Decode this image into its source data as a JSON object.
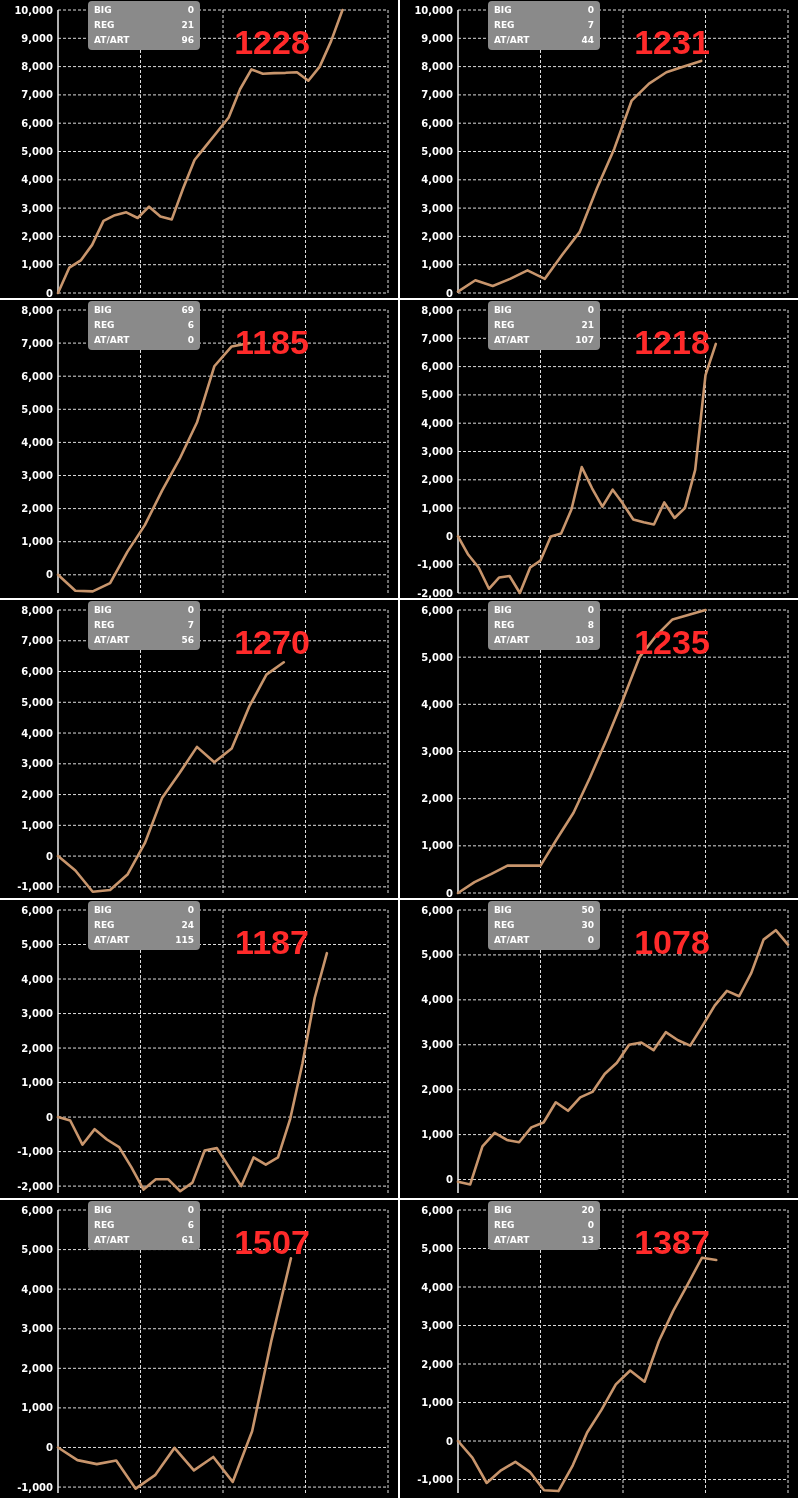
{
  "chart_data": [
    {
      "type": "line",
      "title": "1228",
      "annotations": [
        "BIG",
        "0",
        "REG",
        "21",
        "AT/ART",
        "96"
      ],
      "grid": true,
      "categories": [
        null,
        null,
        null,
        null,
        null,
        null,
        null,
        null,
        null,
        null,
        null,
        null,
        null,
        null,
        null,
        null,
        null,
        null,
        null,
        null,
        null,
        null,
        null,
        null,
        null,
        null,
        null,
        null,
        null,
        null
      ],
      "color": "#c8956c",
      "values": [
        0,
        900,
        1150,
        1700,
        2550,
        2750,
        2850,
        2650,
        3050,
        2700,
        2600,
        3700,
        4700,
        5200,
        5700,
        6200,
        7200,
        7900,
        7750,
        7770,
        7780,
        7800,
        7500,
        8000,
        8900,
        10000,
        null,
        null,
        null,
        null
      ],
      "ylim": [
        0,
        10000
      ],
      "yticks": [
        {
          "value": 0,
          "label": "0"
        },
        {
          "value": 1000,
          "label": "1,000"
        },
        {
          "value": 2000,
          "label": "2,000"
        },
        {
          "value": 3000,
          "label": "3,000"
        },
        {
          "value": 4000,
          "label": "4,000"
        },
        {
          "value": 5000,
          "label": "5,000"
        },
        {
          "value": 6000,
          "label": "6,000"
        },
        {
          "value": 7000,
          "label": "7,000"
        },
        {
          "value": 8000,
          "label": "8,000"
        },
        {
          "value": 9000,
          "label": "9,000"
        },
        {
          "value": 10000,
          "label": "10,000"
        }
      ]
    },
    {
      "type": "line",
      "title": "1231",
      "annotations": [
        "BIG",
        "0",
        "REG",
        "7",
        "AT/ART",
        "44"
      ],
      "grid": true,
      "categories": [
        null,
        null,
        null,
        null,
        null,
        null,
        null,
        null,
        null,
        null,
        null,
        null,
        null,
        null,
        null,
        null,
        null,
        null,
        null,
        null
      ],
      "color": "#c8956c",
      "values": [
        50,
        450,
        250,
        500,
        800,
        500,
        1350,
        2150,
        3700,
        5100,
        6800,
        7400,
        7800,
        8000,
        8200,
        null,
        null,
        null,
        null,
        null
      ],
      "ylim": [
        0,
        10000
      ],
      "yticks": [
        {
          "value": 0,
          "label": "0"
        },
        {
          "value": 1000,
          "label": "1,000"
        },
        {
          "value": 2000,
          "label": "2,000"
        },
        {
          "value": 3000,
          "label": "3,000"
        },
        {
          "value": 4000,
          "label": "4,000"
        },
        {
          "value": 5000,
          "label": "5,000"
        },
        {
          "value": 6000,
          "label": "6,000"
        },
        {
          "value": 7000,
          "label": "7,000"
        },
        {
          "value": 8000,
          "label": "8,000"
        },
        {
          "value": 9000,
          "label": "9,000"
        },
        {
          "value": 10000,
          "label": "10,000"
        }
      ]
    },
    {
      "type": "line",
      "title": "1185",
      "annotations": [
        "BIG",
        "69",
        "REG",
        "6",
        "AT/ART",
        "0"
      ],
      "grid": true,
      "categories": [
        null,
        null,
        null,
        null,
        null,
        null,
        null,
        null,
        null,
        null,
        null,
        null,
        null,
        null,
        null,
        null,
        null,
        null,
        null,
        null
      ],
      "color": "#c8956c",
      "values": [
        0,
        -480,
        -500,
        -250,
        700,
        1500,
        2550,
        3500,
        4600,
        6300,
        6900,
        7000,
        null,
        null,
        null,
        null,
        null,
        null,
        null,
        null
      ],
      "ylim": [
        -550,
        8000
      ],
      "yticks": [
        {
          "value": 0,
          "label": "0"
        },
        {
          "value": 1000,
          "label": "1,000"
        },
        {
          "value": 2000,
          "label": "2,000"
        },
        {
          "value": 3000,
          "label": "3,000"
        },
        {
          "value": 4000,
          "label": "4,000"
        },
        {
          "value": 5000,
          "label": "5,000"
        },
        {
          "value": 6000,
          "label": "6,000"
        },
        {
          "value": 7000,
          "label": "7,000"
        },
        {
          "value": 8000,
          "label": "8,000"
        }
      ]
    },
    {
      "type": "line",
      "title": "1218",
      "annotations": [
        "BIG",
        "0",
        "REG",
        "21",
        "AT/ART",
        "107"
      ],
      "grid": true,
      "categories": [
        null,
        null,
        null,
        null,
        null,
        null,
        null,
        null,
        null,
        null,
        null,
        null,
        null,
        null,
        null,
        null,
        null,
        null,
        null,
        null,
        null,
        null,
        null,
        null,
        null,
        null,
        null,
        null,
        null,
        null,
        null,
        null,
        null
      ],
      "color": "#c8956c",
      "values": [
        0,
        -650,
        -1100,
        -1850,
        -1450,
        -1400,
        -2000,
        -1100,
        -850,
        0,
        100,
        950,
        2450,
        1700,
        1050,
        1650,
        1150,
        600,
        500,
        420,
        1200,
        650,
        1000,
        2350,
        5700,
        6800,
        null,
        null,
        null,
        null,
        null,
        null,
        null
      ],
      "ylim": [
        -2000,
        8000
      ],
      "yticks": [
        {
          "value": -2000,
          "label": "-2,000"
        },
        {
          "value": -1000,
          "label": "-1,000"
        },
        {
          "value": 0,
          "label": "0"
        },
        {
          "value": 1000,
          "label": "1,000"
        },
        {
          "value": 2000,
          "label": "2,000"
        },
        {
          "value": 3000,
          "label": "3,000"
        },
        {
          "value": 4000,
          "label": "4,000"
        },
        {
          "value": 5000,
          "label": "5,000"
        },
        {
          "value": 6000,
          "label": "6,000"
        },
        {
          "value": 7000,
          "label": "7,000"
        },
        {
          "value": 8000,
          "label": "8,000"
        }
      ]
    },
    {
      "type": "line",
      "title": "1270",
      "annotations": [
        "BIG",
        "0",
        "REG",
        "7",
        "AT/ART",
        "56"
      ],
      "grid": true,
      "categories": [
        null,
        null,
        null,
        null,
        null,
        null,
        null,
        null,
        null,
        null,
        null,
        null,
        null,
        null,
        null,
        null,
        null,
        null,
        null,
        null
      ],
      "color": "#c8956c",
      "values": [
        0,
        -470,
        -1160,
        -1100,
        -600,
        420,
        1900,
        2700,
        3550,
        3050,
        3500,
        4850,
        5900,
        6300,
        null,
        null,
        null,
        null,
        null,
        null
      ],
      "ylim": [
        -1200,
        8000
      ],
      "yticks": [
        {
          "value": -1000,
          "label": "-1,000"
        },
        {
          "value": 0,
          "label": "0"
        },
        {
          "value": 1000,
          "label": "1,000"
        },
        {
          "value": 2000,
          "label": "2,000"
        },
        {
          "value": 3000,
          "label": "3,000"
        },
        {
          "value": 4000,
          "label": "4,000"
        },
        {
          "value": 5000,
          "label": "5,000"
        },
        {
          "value": 6000,
          "label": "6,000"
        },
        {
          "value": 7000,
          "label": "7,000"
        },
        {
          "value": 8000,
          "label": "8,000"
        }
      ]
    },
    {
      "type": "line",
      "title": "1235",
      "annotations": [
        "BIG",
        "0",
        "REG",
        "8",
        "AT/ART",
        "103"
      ],
      "grid": true,
      "categories": [
        null,
        null,
        null,
        null,
        null,
        null,
        null,
        null,
        null,
        null,
        null,
        null,
        null,
        null,
        null,
        null,
        null,
        null,
        null,
        null,
        null
      ],
      "color": "#c8956c",
      "values": [
        0,
        230,
        400,
        580,
        580,
        580,
        1150,
        1700,
        2450,
        3250,
        4100,
        5000,
        5450,
        5800,
        5900,
        6000,
        null,
        null,
        null,
        null,
        null
      ],
      "ylim": [
        0,
        6000
      ],
      "yticks": [
        {
          "value": 0,
          "label": "0"
        },
        {
          "value": 1000,
          "label": "1,000"
        },
        {
          "value": 2000,
          "label": "2,000"
        },
        {
          "value": 3000,
          "label": "3,000"
        },
        {
          "value": 4000,
          "label": "4,000"
        },
        {
          "value": 5000,
          "label": "5,000"
        },
        {
          "value": 6000,
          "label": "6,000"
        }
      ]
    },
    {
      "type": "line",
      "title": "1187",
      "annotations": [
        "BIG",
        "0",
        "REG",
        "24",
        "AT/ART",
        "115"
      ],
      "grid": true,
      "categories": [
        null,
        null,
        null,
        null,
        null,
        null,
        null,
        null,
        null,
        null,
        null,
        null,
        null,
        null,
        null,
        null,
        null,
        null,
        null,
        null,
        null,
        null,
        null,
        null,
        null,
        null,
        null,
        null
      ],
      "color": "#c8956c",
      "values": [
        0,
        -100,
        -800,
        -350,
        -650,
        -870,
        -1450,
        -2100,
        -1800,
        -1800,
        -2150,
        -1900,
        -970,
        -900,
        -1450,
        -2000,
        -1170,
        -1380,
        -1170,
        -50,
        1550,
        3450,
        4750,
        null,
        null,
        null,
        null,
        null
      ],
      "ylim": [
        -2200,
        6000
      ],
      "yticks": [
        {
          "value": -2000,
          "label": "-2,000"
        },
        {
          "value": -1000,
          "label": "-1,000"
        },
        {
          "value": 0,
          "label": "0"
        },
        {
          "value": 1000,
          "label": "1,000"
        },
        {
          "value": 2000,
          "label": "2,000"
        },
        {
          "value": 3000,
          "label": "3,000"
        },
        {
          "value": 4000,
          "label": "4,000"
        },
        {
          "value": 5000,
          "label": "5,000"
        },
        {
          "value": 6000,
          "label": "6,000"
        }
      ]
    },
    {
      "type": "line",
      "title": "1078",
      "annotations": [
        "BIG",
        "50",
        "REG",
        "30",
        "AT/ART",
        "0"
      ],
      "grid": true,
      "categories": [
        null,
        null,
        null,
        null,
        null,
        null,
        null,
        null,
        null,
        null,
        null,
        null,
        null,
        null,
        null,
        null,
        null,
        null,
        null,
        null,
        null,
        null,
        null,
        null,
        null,
        null,
        null,
        null
      ],
      "color": "#c8956c",
      "values": [
        -50,
        -110,
        740,
        1040,
        880,
        830,
        1160,
        1270,
        1720,
        1530,
        1830,
        1950,
        2350,
        2600,
        3000,
        3050,
        2880,
        3280,
        3100,
        2980,
        3420,
        3870,
        4200,
        4080,
        4600,
        5340,
        5550,
        5230
      ],
      "ylim": [
        -300,
        6000
      ],
      "yticks": [
        {
          "value": 0,
          "label": "0"
        },
        {
          "value": 1000,
          "label": "1,000"
        },
        {
          "value": 2000,
          "label": "2,000"
        },
        {
          "value": 3000,
          "label": "3,000"
        },
        {
          "value": 4000,
          "label": "4,000"
        },
        {
          "value": 5000,
          "label": "5,000"
        },
        {
          "value": 6000,
          "label": "6,000"
        }
      ]
    },
    {
      "type": "line",
      "title": "1507",
      "annotations": [
        "BIG",
        "0",
        "REG",
        "6",
        "AT/ART",
        "61"
      ],
      "grid": true,
      "categories": [
        null,
        null,
        null,
        null,
        null,
        null,
        null,
        null,
        null,
        null,
        null,
        null,
        null,
        null,
        null,
        null,
        null,
        null
      ],
      "color": "#c8956c",
      "values": [
        0,
        -320,
        -420,
        -330,
        -1040,
        -700,
        -10,
        -580,
        -240,
        -870,
        410,
        2720,
        4780,
        null,
        null,
        null,
        null,
        null
      ],
      "ylim": [
        -1150,
        6000
      ],
      "yticks": [
        {
          "value": -1000,
          "label": "-1,000"
        },
        {
          "value": 0,
          "label": "0"
        },
        {
          "value": 1000,
          "label": "1,000"
        },
        {
          "value": 2000,
          "label": "2,000"
        },
        {
          "value": 3000,
          "label": "3,000"
        },
        {
          "value": 4000,
          "label": "4,000"
        },
        {
          "value": 5000,
          "label": "5,000"
        },
        {
          "value": 6000,
          "label": "6,000"
        }
      ]
    },
    {
      "type": "line",
      "title": "1387",
      "annotations": [
        "BIG",
        "20",
        "REG",
        "0",
        "AT/ART",
        "13"
      ],
      "grid": true,
      "categories": [
        null,
        null,
        null,
        null,
        null,
        null,
        null,
        null,
        null,
        null,
        null,
        null,
        null,
        null,
        null,
        null,
        null,
        null,
        null,
        null,
        null,
        null,
        null,
        null
      ],
      "color": "#c8956c",
      "values": [
        0,
        -430,
        -1090,
        -760,
        -540,
        -800,
        -1280,
        -1300,
        -630,
        220,
        810,
        1470,
        1830,
        1540,
        2590,
        3380,
        4060,
        4760,
        4700,
        null,
        null,
        null,
        null,
        null
      ],
      "ylim": [
        -1350,
        6000
      ],
      "yticks": [
        {
          "value": -1000,
          "label": "-1,000"
        },
        {
          "value": 0,
          "label": "0"
        },
        {
          "value": 1000,
          "label": "1,000"
        },
        {
          "value": 2000,
          "label": "2,000"
        },
        {
          "value": 3000,
          "label": "3,000"
        },
        {
          "value": 4000,
          "label": "4,000"
        },
        {
          "value": 5000,
          "label": "5,000"
        },
        {
          "value": 6000,
          "label": "6,000"
        }
      ]
    }
  ]
}
